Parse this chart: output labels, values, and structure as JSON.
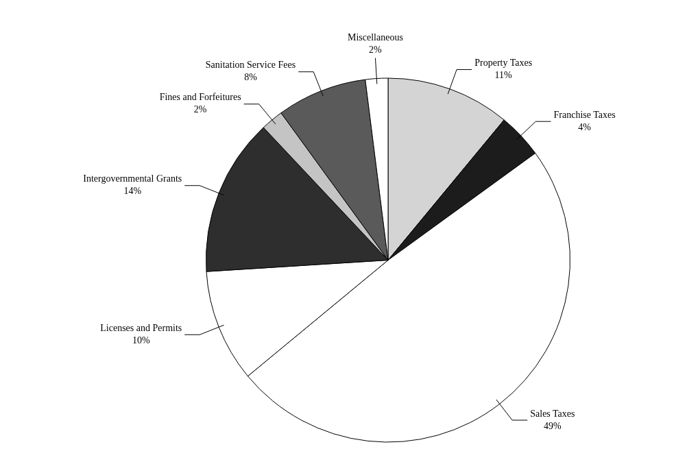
{
  "chart_data": {
    "type": "pie",
    "categories": [
      "Property Taxes",
      "Franchise Taxes",
      "Sales Taxes",
      "Licenses and Permits",
      "Intergovernmental Grants",
      "Fines and Forfeitures",
      "Sanitation Service Fees",
      "Miscellaneous"
    ],
    "values": [
      11,
      4,
      49,
      10,
      14,
      2,
      8,
      2
    ],
    "value_labels": [
      "11%",
      "4%",
      "49%",
      "10%",
      "14%",
      "2%",
      "8%",
      "2%"
    ],
    "colors": [
      "#d4d4d4",
      "#1c1c1c",
      "#ffffff",
      "#ffffff",
      "#2e2e2e",
      "#c4c4c4",
      "#5a5a5a",
      "#ffffff"
    ],
    "legend": false
  }
}
